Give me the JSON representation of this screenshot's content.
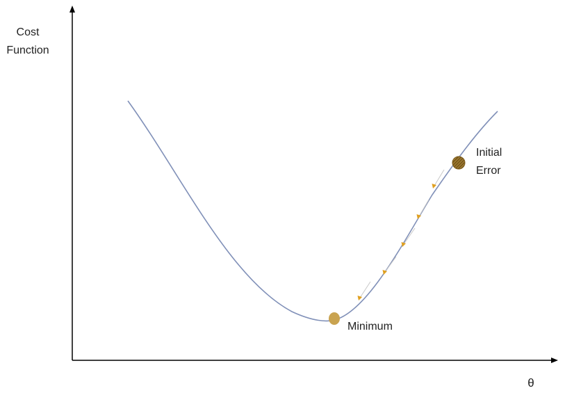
{
  "labels": {
    "y_axis": [
      "Cost",
      "Function"
    ],
    "x_axis": "θ",
    "start_point": [
      "Initial",
      "Error"
    ],
    "end_point": "Minimum"
  },
  "colors": {
    "background": "#ffffff",
    "axis": "#000000",
    "curve": "#8090b8",
    "minimum_point": "#c9a350",
    "initial_point": "#7a5a1c",
    "initial_point_hatch": "#c9a350",
    "step_arrow_line": "#c8c8c8",
    "step_arrow_head": "#e0a020"
  },
  "step_arrows_count": 5
}
